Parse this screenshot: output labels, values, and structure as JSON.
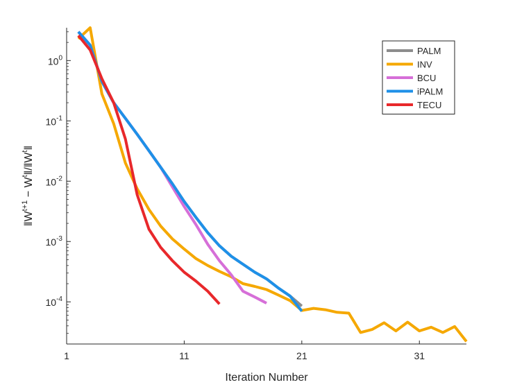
{
  "chart_data": {
    "type": "line",
    "xlabel": "Iteration Number",
    "ylabel": "||W^{t+1} - W^t|| / ||W^t||",
    "ylabel_parts": {
      "lhs_open": "‖W",
      "lhs_sup": "t+1",
      "minus": " − W",
      "lhs_sup2": "t",
      "mid": "‖/‖W",
      "rhs_sup": "t",
      "close": "‖"
    },
    "xlim": [
      1,
      35
    ],
    "ylim": [
      2e-05,
      3.5
    ],
    "yscale": "log",
    "x_ticks": [
      1,
      11,
      21,
      31
    ],
    "x_tick_labels": [
      "1",
      "11",
      "21",
      "31"
    ],
    "y_ticks": [
      1,
      0.1,
      0.01,
      0.001,
      0.0001
    ],
    "y_tick_labels": [
      {
        "base": "10",
        "exp": "0"
      },
      {
        "base": "10",
        "exp": "-1"
      },
      {
        "base": "10",
        "exp": "-2"
      },
      {
        "base": "10",
        "exp": "-3"
      },
      {
        "base": "10",
        "exp": "-4"
      }
    ],
    "grid": false,
    "legend_position": "top-right",
    "series": [
      {
        "name": "PALM",
        "color": "#8c8c8c",
        "x": [
          2,
          3,
          4,
          5,
          6,
          7,
          8,
          9,
          10,
          11,
          12,
          13,
          14,
          15,
          16,
          17,
          18,
          19,
          20,
          21
        ],
        "y": [
          3.0,
          1.8,
          0.45,
          0.2,
          0.11,
          0.06,
          0.032,
          0.017,
          0.009,
          0.0046,
          0.0025,
          0.0014,
          0.00085,
          0.00057,
          0.00042,
          0.00031,
          0.00024,
          0.00017,
          0.000125,
          8.5e-05
        ]
      },
      {
        "name": "INV",
        "color": "#f5a800",
        "x": [
          2,
          3,
          4,
          5,
          6,
          7,
          8,
          9,
          10,
          11,
          12,
          13,
          14,
          15,
          16,
          17,
          18,
          19,
          20,
          21,
          22,
          23,
          24,
          25,
          26,
          27,
          28,
          29,
          30,
          31,
          32,
          33,
          34,
          35
        ],
        "y": [
          2.3,
          3.5,
          0.28,
          0.09,
          0.02,
          0.0075,
          0.0034,
          0.0018,
          0.0011,
          0.00075,
          0.00052,
          0.0004,
          0.00032,
          0.00026,
          0.0002,
          0.00018,
          0.00016,
          0.00013,
          0.000105,
          7.2e-05,
          7.8e-05,
          7.4e-05,
          6.7e-05,
          6.5e-05,
          3.1e-05,
          3.5e-05,
          4.5e-05,
          3.3e-05,
          4.6e-05,
          3.3e-05,
          3.8e-05,
          3.1e-05,
          3.9e-05,
          2.2e-05
        ]
      },
      {
        "name": "BCU",
        "color": "#d66fd8",
        "x": [
          2,
          3,
          4,
          5,
          6,
          7,
          8,
          9,
          10,
          11,
          12,
          13,
          14,
          15,
          16,
          17,
          18
        ],
        "y": [
          3.0,
          1.8,
          0.45,
          0.2,
          0.11,
          0.06,
          0.032,
          0.017,
          0.008,
          0.0038,
          0.0019,
          0.0009,
          0.00048,
          0.00028,
          0.00015,
          0.00012,
          9.5e-05
        ]
      },
      {
        "name": "iPALM",
        "color": "#1e90e8",
        "x": [
          2,
          3,
          4,
          5,
          6,
          7,
          8,
          9,
          10,
          11,
          12,
          13,
          14,
          15,
          16,
          17,
          18,
          19,
          20,
          21
        ],
        "y": [
          3.0,
          1.8,
          0.45,
          0.2,
          0.11,
          0.06,
          0.032,
          0.017,
          0.009,
          0.0046,
          0.0025,
          0.0014,
          0.00085,
          0.00057,
          0.00042,
          0.00031,
          0.00024,
          0.00017,
          0.000125,
          7e-05
        ]
      },
      {
        "name": "TECU",
        "color": "#e8282b",
        "x": [
          2,
          3,
          4,
          5,
          6,
          7,
          8,
          9,
          10,
          11,
          12,
          13,
          14
        ],
        "y": [
          2.6,
          1.5,
          0.5,
          0.2,
          0.05,
          0.006,
          0.0016,
          0.0008,
          0.00048,
          0.00031,
          0.00022,
          0.00015,
          9.2e-05
        ]
      }
    ]
  }
}
